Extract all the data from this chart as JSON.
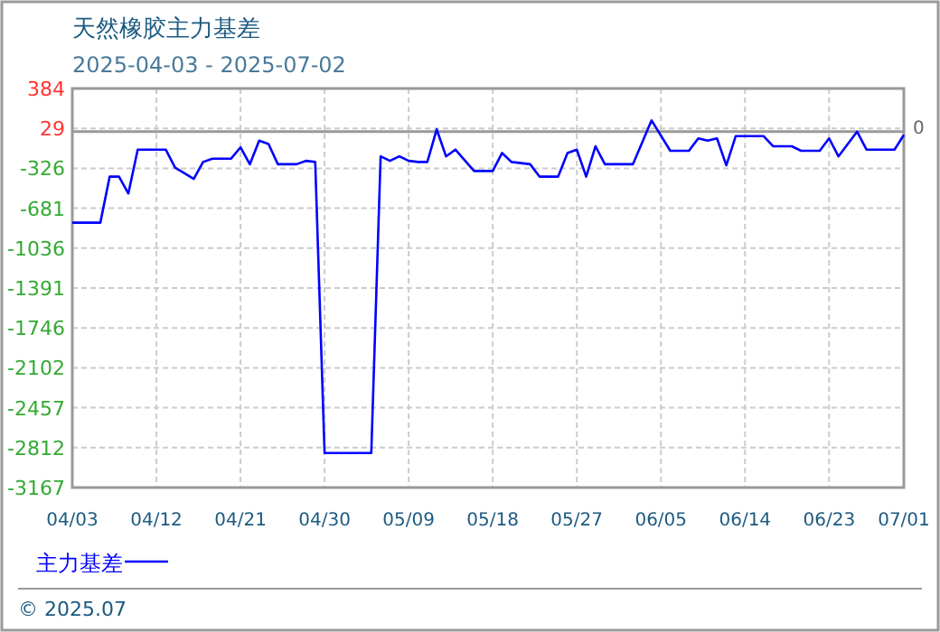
{
  "chart_data": {
    "type": "line",
    "title": "天然橡胶主力基差",
    "subtitle": "2025-04-03 - 2025-07-02",
    "x": [
      "2025-04-03",
      "2025-04-06",
      "2025-04-07",
      "2025-04-08",
      "2025-04-09",
      "2025-04-10",
      "2025-04-11",
      "2025-04-13",
      "2025-04-14",
      "2025-04-16",
      "2025-04-17",
      "2025-04-18",
      "2025-04-20",
      "2025-04-21",
      "2025-04-22",
      "2025-04-23",
      "2025-04-24",
      "2025-04-25",
      "2025-04-27",
      "2025-04-28",
      "2025-04-29",
      "2025-04-30",
      "2025-05-05",
      "2025-05-06",
      "2025-05-07",
      "2025-05-08",
      "2025-05-09",
      "2025-05-10",
      "2025-05-11",
      "2025-05-12",
      "2025-05-13",
      "2025-05-14",
      "2025-05-16",
      "2025-05-18",
      "2025-05-19",
      "2025-05-20",
      "2025-05-22",
      "2025-05-23",
      "2025-05-25",
      "2025-05-26",
      "2025-05-27",
      "2025-05-28",
      "2025-05-29",
      "2025-05-30",
      "2025-06-02",
      "2025-06-04",
      "2025-06-06",
      "2025-06-08",
      "2025-06-09",
      "2025-06-10",
      "2025-06-11",
      "2025-06-12",
      "2025-06-13",
      "2025-06-16",
      "2025-06-17",
      "2025-06-19",
      "2025-06-20",
      "2025-06-22",
      "2025-06-23",
      "2025-06-24",
      "2025-06-26",
      "2025-06-27",
      "2025-06-30",
      "2025-07-01"
    ],
    "series": [
      {
        "name": "主力基差",
        "color": "#0000ff",
        "values": [
          -810,
          -810,
          -400,
          -400,
          -550,
          -160,
          -160,
          -160,
          -320,
          -420,
          -270,
          -240,
          -240,
          -140,
          -290,
          -80,
          -110,
          -290,
          -290,
          -260,
          -270,
          -2860,
          -2860,
          -220,
          -260,
          -220,
          -260,
          -270,
          -270,
          20,
          -220,
          -160,
          -350,
          -350,
          -190,
          -270,
          -290,
          -400,
          -400,
          -190,
          -160,
          -400,
          -130,
          -290,
          -290,
          100,
          -170,
          -170,
          -60,
          -80,
          -60,
          -300,
          -40,
          -40,
          -130,
          -130,
          -170,
          -170,
          -60,
          -220,
          0,
          -160,
          -160,
          -30
        ]
      }
    ],
    "xlim": [
      "2025-04-03",
      "2025-07-01"
    ],
    "xticks": [
      {
        "value": "2025-04-03",
        "label": "04/03"
      },
      {
        "value": "2025-04-12",
        "label": "04/12"
      },
      {
        "value": "2025-04-21",
        "label": "04/21"
      },
      {
        "value": "2025-04-30",
        "label": "04/30"
      },
      {
        "value": "2025-05-09",
        "label": "05/09"
      },
      {
        "value": "2025-05-18",
        "label": "05/18"
      },
      {
        "value": "2025-05-27",
        "label": "05/27"
      },
      {
        "value": "2025-06-05",
        "label": "06/05"
      },
      {
        "value": "2025-06-14",
        "label": "06/14"
      },
      {
        "value": "2025-06-23",
        "label": "06/23"
      },
      {
        "value": "2025-07-01",
        "label": "07/01"
      }
    ],
    "ylim": [
      -3167,
      384
    ],
    "yticks": [
      384,
      29,
      -326,
      -681,
      -1036,
      -1391,
      -1746,
      -2102,
      -2457,
      -2812,
      -3167
    ],
    "ref_lines": [
      {
        "axis": "y",
        "value": 0,
        "label": "0",
        "color": "#999999"
      }
    ],
    "annotations": [
      "© 2025.07"
    ],
    "grid": true,
    "legend": "bottom left",
    "line_style": "solid",
    "marker": "none"
  }
}
